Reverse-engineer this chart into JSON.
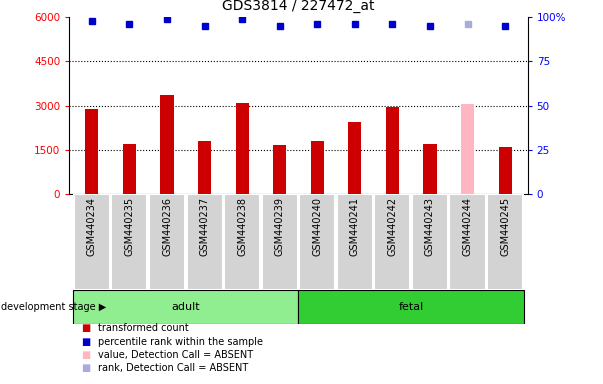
{
  "title": "GDS3814 / 227472_at",
  "categories": [
    "GSM440234",
    "GSM440235",
    "GSM440236",
    "GSM440237",
    "GSM440238",
    "GSM440239",
    "GSM440240",
    "GSM440241",
    "GSM440242",
    "GSM440243",
    "GSM440244",
    "GSM440245"
  ],
  "bar_values": [
    2900,
    1700,
    3350,
    1800,
    3100,
    1650,
    1800,
    2450,
    2950,
    1700,
    3050,
    1600
  ],
  "bar_colors": [
    "#cc0000",
    "#cc0000",
    "#cc0000",
    "#cc0000",
    "#cc0000",
    "#cc0000",
    "#cc0000",
    "#cc0000",
    "#cc0000",
    "#cc0000",
    "#ffb6c1",
    "#cc0000"
  ],
  "percentile_values": [
    98,
    96,
    99,
    95,
    99,
    95,
    96,
    96,
    96,
    95,
    96,
    95
  ],
  "percentile_colors": [
    "#0000cc",
    "#0000cc",
    "#0000cc",
    "#0000cc",
    "#0000cc",
    "#0000cc",
    "#0000cc",
    "#0000cc",
    "#0000cc",
    "#0000cc",
    "#aaaadd",
    "#0000cc"
  ],
  "adult_indices": [
    0,
    1,
    2,
    3,
    4,
    5
  ],
  "fetal_indices": [
    6,
    7,
    8,
    9,
    10,
    11
  ],
  "adult_label": "adult",
  "fetal_label": "fetal",
  "ylim_left": [
    0,
    6000
  ],
  "ylim_right": [
    0,
    100
  ],
  "yticks_left": [
    0,
    1500,
    3000,
    4500,
    6000
  ],
  "ytick_labels_left": [
    "0",
    "1500",
    "3000",
    "4500",
    "6000"
  ],
  "yticks_right": [
    0,
    25,
    50,
    75,
    100
  ],
  "ytick_labels_right": [
    "0",
    "25",
    "50",
    "75",
    "100%"
  ],
  "grid_values": [
    1500,
    3000,
    4500
  ],
  "stage_label": "development stage",
  "legend_entries": [
    {
      "label": "transformed count",
      "color": "#cc0000"
    },
    {
      "label": "percentile rank within the sample",
      "color": "#0000cc"
    },
    {
      "label": "value, Detection Call = ABSENT",
      "color": "#ffb6c1"
    },
    {
      "label": "rank, Detection Call = ABSENT",
      "color": "#aaaadd"
    }
  ],
  "background_color": "#ffffff",
  "xticklabel_area_color": "#d3d3d3",
  "adult_bg": "#90ee90",
  "fetal_bg": "#32cd32",
  "bar_width": 0.35
}
